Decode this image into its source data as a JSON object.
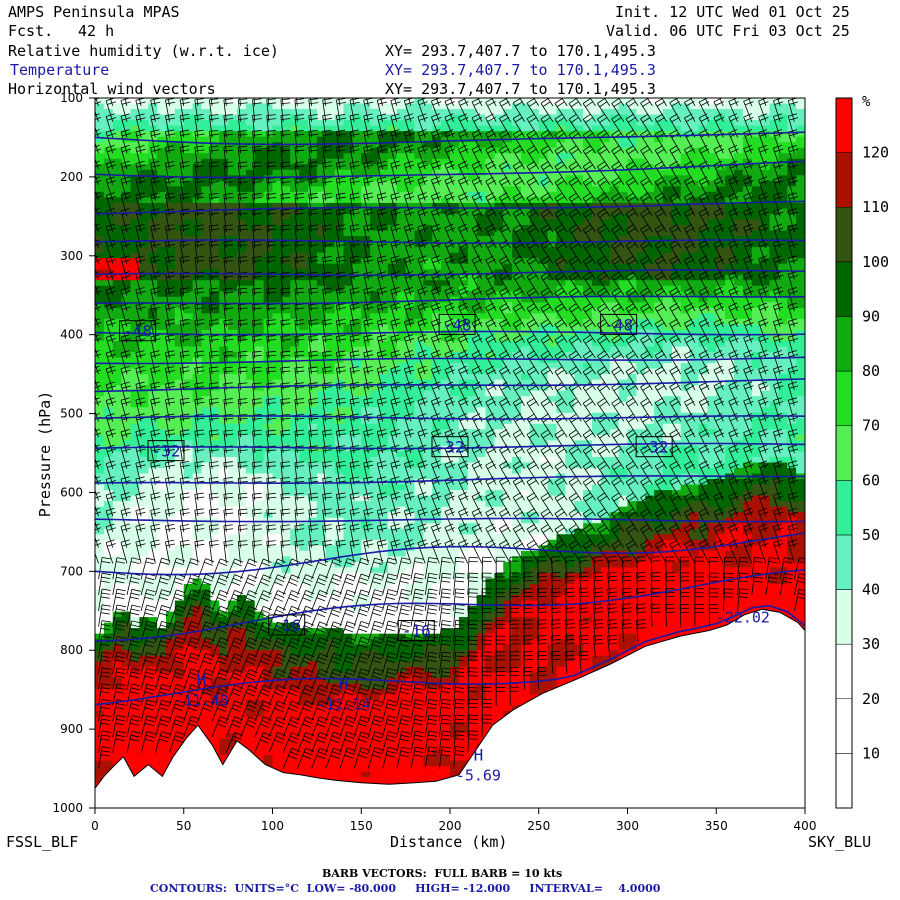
{
  "header": {
    "model": "AMPS Peninsula MPAS",
    "forecast_label": "Fcst.",
    "forecast_hours": "42 h",
    "init": "Init. 12 UTC Wed 01 Oct 25",
    "valid": "Valid. 06 UTC Fri 03 Oct 25",
    "fields": [
      {
        "name": "Relative humidity (w.r.t. ice)",
        "xy": "XY= 293.7,407.7 to 170.1,495.3"
      },
      {
        "name": "Temperature",
        "xy": "XY= 293.7,407.7 to 170.1,495.3"
      },
      {
        "name": "Horizontal wind vectors",
        "xy": "XY= 293.7,407.7 to 170.1,495.3"
      }
    ]
  },
  "endpoints": {
    "left": "FSSL_BLF",
    "right": "SKY_BLU"
  },
  "footer": {
    "barb": "BARB VECTORS:  FULL BARB = 10 kts",
    "contours": "CONTOURS:  UNITS=°C  LOW= -80.000     HIGH= -12.000     INTERVAL=    4.0000"
  },
  "colors": {
    "temperature_contour": "#1a1aa6",
    "terrain": "#ffffff",
    "rh_bins": [
      "#ffffff",
      "#ffffff",
      "#ffffff",
      "#d8ffe8",
      "#66f0c0",
      "#33ee99",
      "#55ee55",
      "#22dd22",
      "#11aa11",
      "#006600",
      "#335511",
      "#aa1100",
      "#ff0000"
    ]
  },
  "chart_data": {
    "type": "heatmap",
    "title": "",
    "xlabel": "Distance (km)",
    "ylabel": "Pressure (hPa)",
    "xlim": [
      0,
      400
    ],
    "ylim": [
      1000,
      100
    ],
    "x_ticks": [
      0,
      50,
      100,
      150,
      200,
      250,
      300,
      350,
      400
    ],
    "y_ticks": [
      100,
      200,
      300,
      400,
      500,
      600,
      700,
      800,
      900,
      1000
    ],
    "colorbar": {
      "unit": "%",
      "bounds": [
        0,
        10,
        20,
        30,
        40,
        50,
        60,
        70,
        80,
        90,
        100,
        110,
        120,
        130
      ],
      "labels": [
        10,
        20,
        30,
        40,
        50,
        60,
        70,
        80,
        90,
        100,
        110,
        120
      ]
    },
    "contour_labels": [
      {
        "text": "-48",
        "x": 24,
        "p": 395
      },
      {
        "text": "-48",
        "x": 204,
        "p": 387
      },
      {
        "text": "-48",
        "x": 295,
        "p": 387
      },
      {
        "text": "-32",
        "x": 40,
        "p": 547
      },
      {
        "text": "-32",
        "x": 200,
        "p": 542
      },
      {
        "text": "-32",
        "x": 315,
        "p": 542
      },
      {
        "text": "-16",
        "x": 108,
        "p": 768
      },
      {
        "text": "-16",
        "x": 181,
        "p": 775
      }
    ],
    "extrema": [
      {
        "type": "H",
        "value": "-11.48",
        "x": 60,
        "p": 865
      },
      {
        "type": "H",
        "value": "-11.14",
        "x": 140,
        "p": 870
      },
      {
        "type": "H",
        "value": "-5.69",
        "x": 216,
        "p": 960
      },
      {
        "type": "",
        "value": "-22.02",
        "x": 365,
        "p": 760
      }
    ],
    "terrain_surface": [
      [
        0,
        975
      ],
      [
        5,
        960
      ],
      [
        10,
        948
      ],
      [
        16,
        935
      ],
      [
        22,
        960
      ],
      [
        30,
        945
      ],
      [
        38,
        960
      ],
      [
        44,
        935
      ],
      [
        52,
        910
      ],
      [
        58,
        895
      ],
      [
        66,
        920
      ],
      [
        72,
        945
      ],
      [
        80,
        915
      ],
      [
        86,
        925
      ],
      [
        96,
        945
      ],
      [
        106,
        955
      ],
      [
        116,
        958
      ],
      [
        126,
        962
      ],
      [
        136,
        965
      ],
      [
        150,
        968
      ],
      [
        166,
        970
      ],
      [
        180,
        968
      ],
      [
        192,
        966
      ],
      [
        205,
        958
      ],
      [
        215,
        925
      ],
      [
        224,
        895
      ],
      [
        236,
        875
      ],
      [
        252,
        855
      ],
      [
        270,
        838
      ],
      [
        290,
        818
      ],
      [
        310,
        795
      ],
      [
        330,
        782
      ],
      [
        346,
        775
      ],
      [
        356,
        768
      ],
      [
        366,
        755
      ],
      [
        376,
        748
      ],
      [
        386,
        752
      ],
      [
        396,
        765
      ],
      [
        400,
        775
      ]
    ]
  }
}
